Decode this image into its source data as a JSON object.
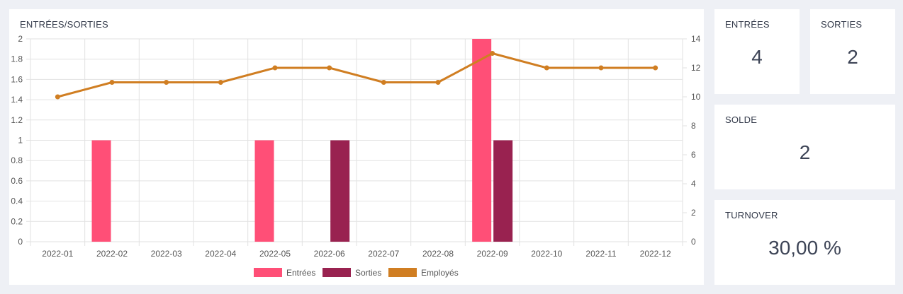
{
  "chart_card": {
    "title": "ENTRÉES/SORTIES"
  },
  "stats": {
    "entrees": {
      "label": "ENTRÉES",
      "value": "4"
    },
    "sorties": {
      "label": "SORTIES",
      "value": "2"
    },
    "solde": {
      "label": "SOLDE",
      "value": "2"
    },
    "turnover": {
      "label": "TURNOVER",
      "value": "30,00 %"
    }
  },
  "colors": {
    "entrees": "#ff4f77",
    "sorties": "#992250",
    "employes": "#d07e22"
  },
  "chart_data": {
    "type": "bar",
    "title": "ENTRÉES/SORTIES",
    "categories": [
      "2022-01",
      "2022-02",
      "2022-03",
      "2022-04",
      "2022-05",
      "2022-06",
      "2022-07",
      "2022-08",
      "2022-09",
      "2022-10",
      "2022-11",
      "2022-12"
    ],
    "series": [
      {
        "name": "Entrées",
        "type": "bar",
        "axis": "left",
        "values": [
          0,
          1,
          0,
          0,
          1,
          0,
          0,
          0,
          2,
          0,
          0,
          0
        ]
      },
      {
        "name": "Sorties",
        "type": "bar",
        "axis": "left",
        "values": [
          0,
          0,
          0,
          0,
          0,
          1,
          0,
          0,
          1,
          0,
          0,
          0
        ]
      },
      {
        "name": "Employés",
        "type": "line",
        "axis": "right",
        "values": [
          10,
          11,
          11,
          11,
          12,
          12,
          11,
          11,
          13,
          12,
          12,
          12
        ]
      }
    ],
    "y_left": {
      "ylim": [
        0,
        2
      ],
      "ticks": [
        "0",
        "0.2",
        "0.4",
        "0.6",
        "0.8",
        "1",
        "1.2",
        "1.4",
        "1.6",
        "1.8",
        "2"
      ]
    },
    "y_right": {
      "ylim": [
        0,
        14
      ],
      "ticks": [
        "0",
        "2",
        "4",
        "6",
        "8",
        "10",
        "12",
        "14"
      ]
    },
    "grid": true,
    "legend_position": "bottom"
  }
}
